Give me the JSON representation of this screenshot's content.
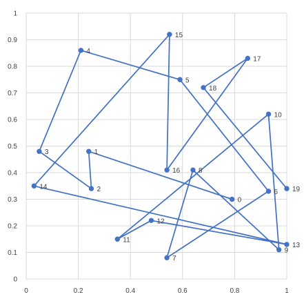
{
  "colors": {
    "series": "#4472C4",
    "grid": "#D9D9D9",
    "sheet_grid": "#E6E6E6",
    "text": "#404040"
  },
  "chart_data": {
    "type": "scatter",
    "mode": "lines+markers",
    "title": "",
    "xlabel": "",
    "ylabel": "",
    "xlim": [
      0,
      1
    ],
    "ylim": [
      0,
      1
    ],
    "grid": true,
    "legend": "none",
    "x_ticks": [
      "0",
      "0.2",
      "0.4",
      "0.6",
      "0.8",
      "1"
    ],
    "y_ticks": [
      "0",
      "0.1",
      "0.2",
      "0.3",
      "0.4",
      "0.5",
      "0.6",
      "0.7",
      "0.8",
      "0.9",
      "1"
    ],
    "series": [
      {
        "points": [
          {
            "label": "0",
            "x": 0.79,
            "y": 0.3
          },
          {
            "label": "1",
            "x": 0.24,
            "y": 0.48
          },
          {
            "label": "2",
            "x": 0.25,
            "y": 0.34
          },
          {
            "label": "3",
            "x": 0.05,
            "y": 0.48
          },
          {
            "label": "4",
            "x": 0.21,
            "y": 0.86
          },
          {
            "label": "5",
            "x": 0.59,
            "y": 0.75
          },
          {
            "label": "6",
            "x": 0.93,
            "y": 0.33
          },
          {
            "label": "7",
            "x": 0.54,
            "y": 0.08
          },
          {
            "label": "8",
            "x": 0.64,
            "y": 0.41
          },
          {
            "label": "9",
            "x": 0.97,
            "y": 0.11
          },
          {
            "label": "10",
            "x": 0.93,
            "y": 0.62
          },
          {
            "label": "11",
            "x": 0.35,
            "y": 0.15
          },
          {
            "label": "12",
            "x": 0.48,
            "y": 0.22
          },
          {
            "label": "13",
            "x": 1.0,
            "y": 0.13
          },
          {
            "label": "14",
            "x": 0.03,
            "y": 0.35
          },
          {
            "label": "15",
            "x": 0.55,
            "y": 0.92
          },
          {
            "label": "16",
            "x": 0.54,
            "y": 0.41
          },
          {
            "label": "17",
            "x": 0.85,
            "y": 0.83
          },
          {
            "label": "18",
            "x": 0.68,
            "y": 0.72
          },
          {
            "label": "19",
            "x": 1.0,
            "y": 0.34
          }
        ]
      }
    ]
  }
}
